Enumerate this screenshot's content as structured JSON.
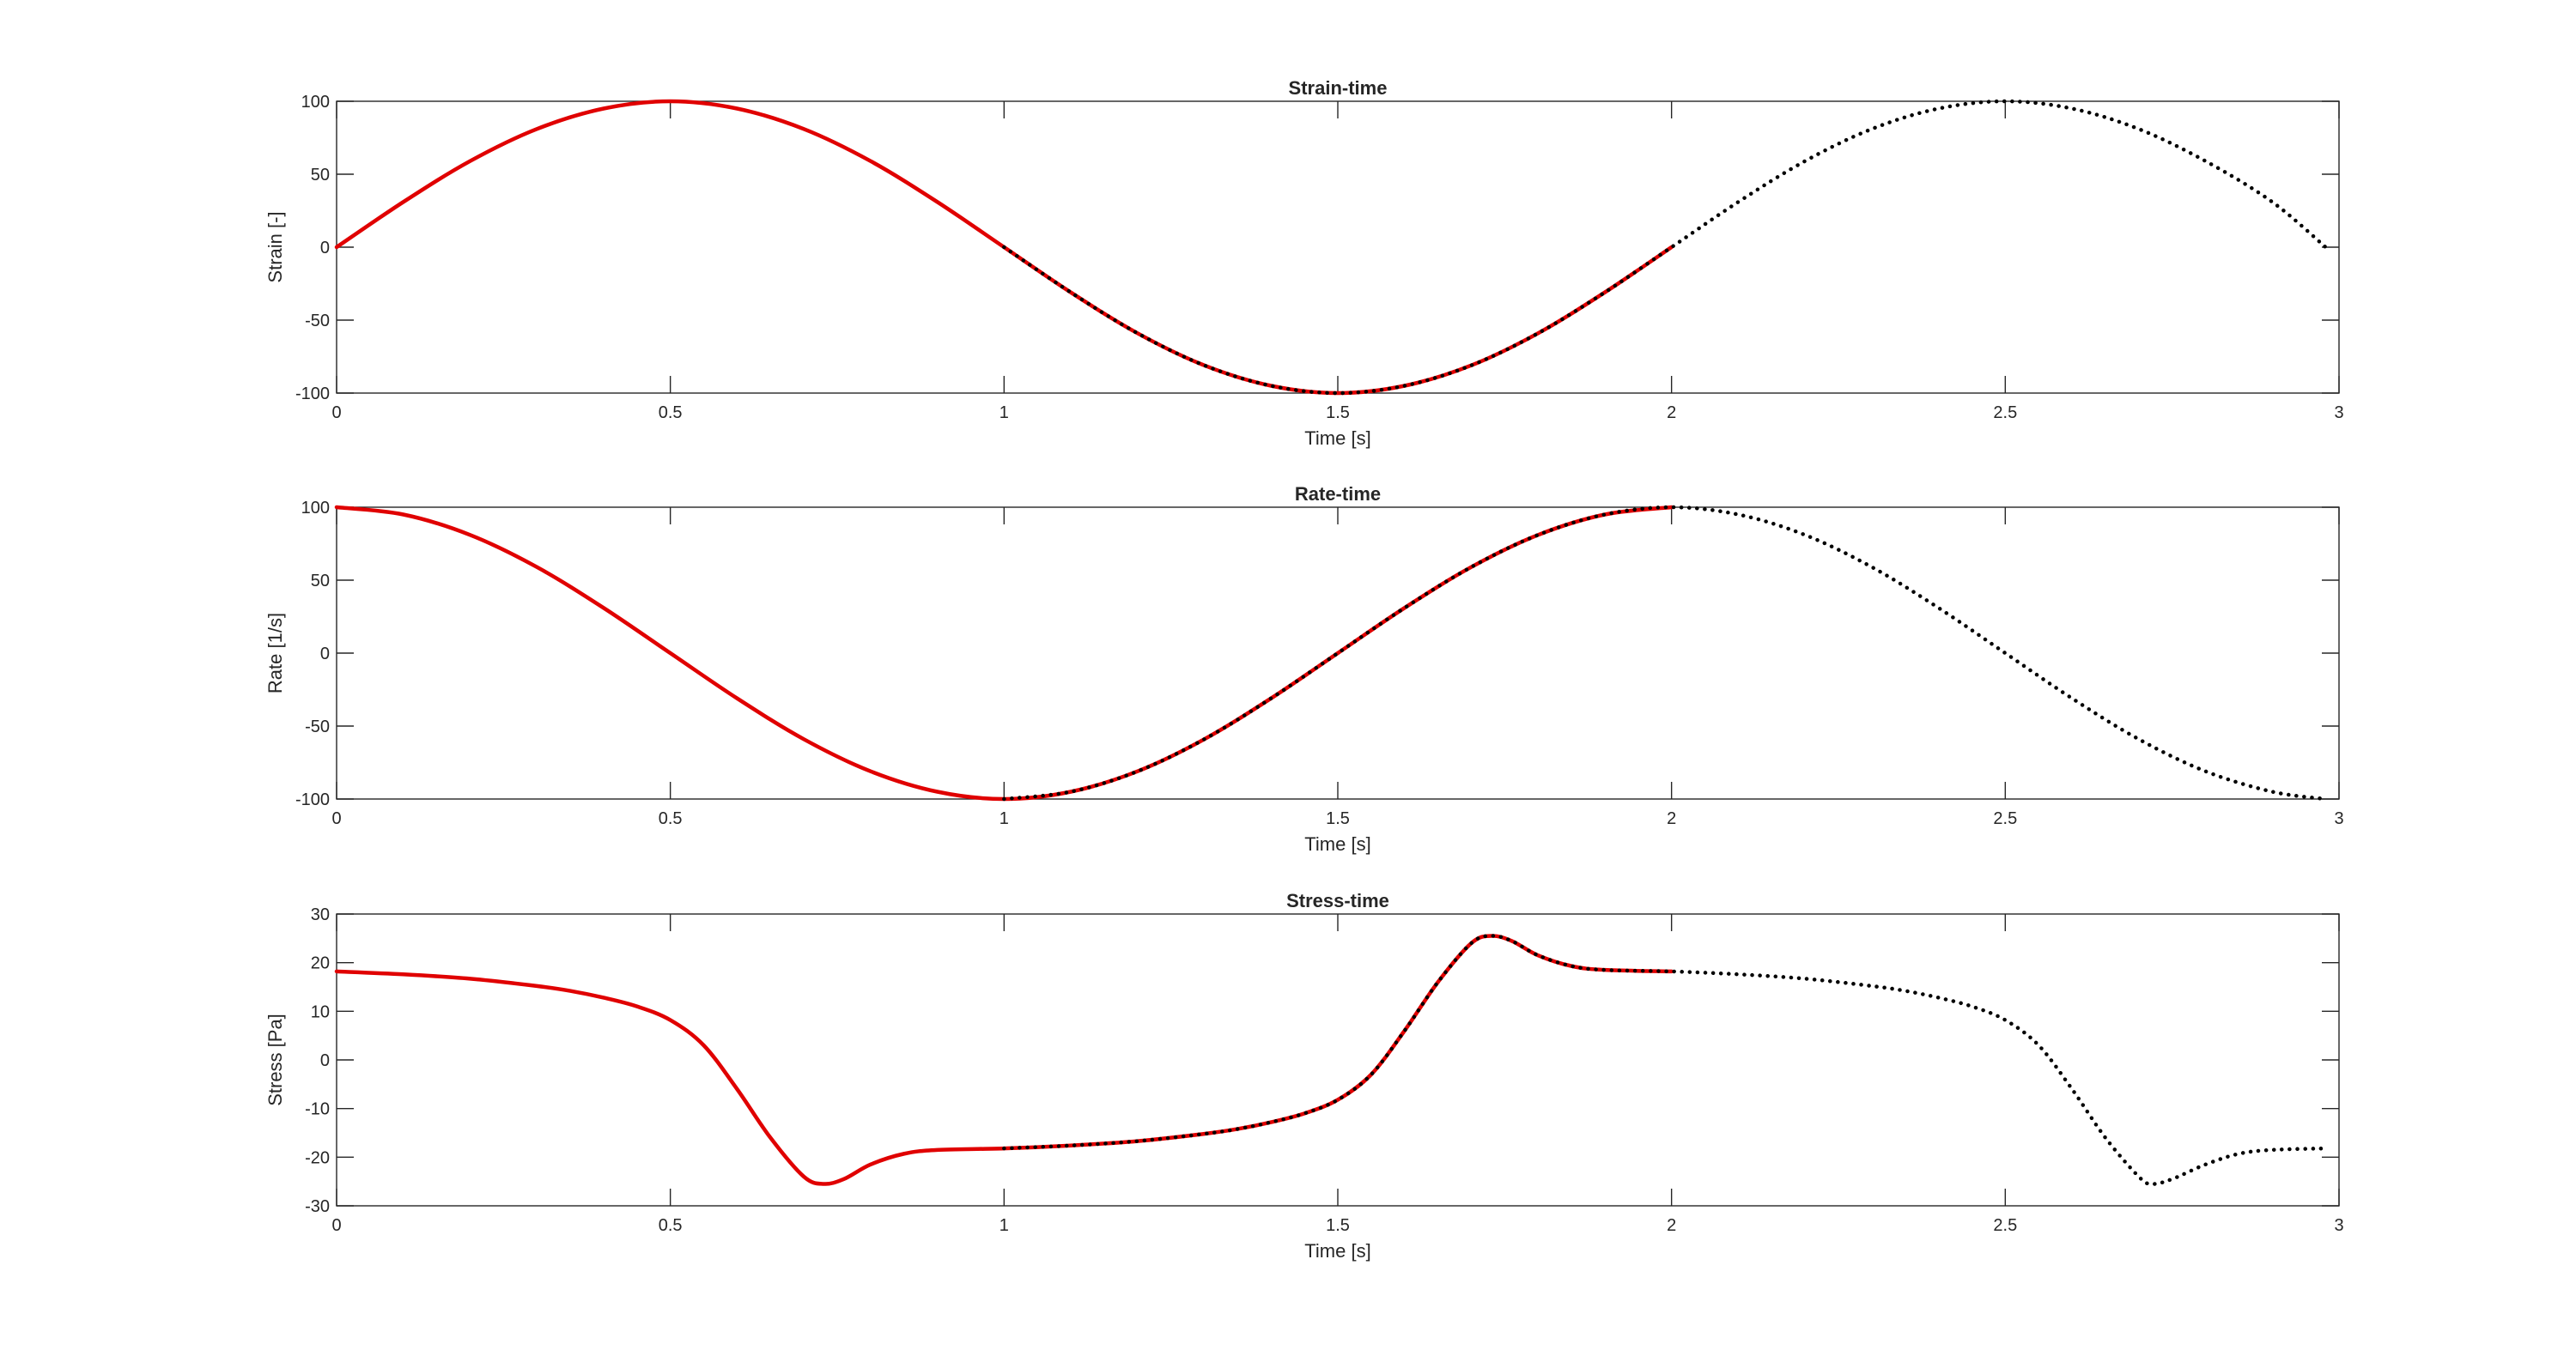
{
  "chart_data": [
    {
      "type": "line",
      "title": "Strain-time",
      "xlabel": "Time [s]",
      "ylabel": "Strain [-]",
      "xlim": [
        0,
        3
      ],
      "ylim": [
        -100,
        100
      ],
      "xticks": [
        0,
        0.5,
        1,
        1.5,
        2,
        2.5,
        3
      ],
      "xticklabels": [
        "0",
        "0.5",
        "1",
        "1.5",
        "2",
        "2.5",
        "3"
      ],
      "yticks": [
        100,
        50,
        0,
        -50,
        -100
      ],
      "yticklabels": [
        "100",
        "50",
        "0",
        "-50",
        "-100"
      ],
      "grid": false,
      "series": [
        {
          "style": "solid",
          "color": "#e00000",
          "x": [
            0,
            0.1,
            0.2,
            0.3,
            0.4,
            0.5,
            0.6,
            0.7,
            0.8,
            0.9,
            1.0,
            1.1,
            1.2,
            1.3,
            1.4,
            1.5,
            1.6,
            1.7,
            1.8,
            1.9,
            2.0
          ],
          "y": [
            0,
            31,
            59,
            81,
            95,
            100,
            95,
            81,
            59,
            31,
            0,
            -31,
            -59,
            -81,
            -95,
            -100,
            -95,
            -81,
            -59,
            -31,
            0
          ]
        },
        {
          "style": "dotted",
          "color": "#000000",
          "x": [
            1.0,
            1.1,
            1.2,
            1.3,
            1.4,
            1.5,
            1.6,
            1.7,
            1.8,
            1.9,
            2.0,
            2.1,
            2.2,
            2.3,
            2.4,
            2.5,
            2.6,
            2.7,
            2.8,
            2.9,
            2.98
          ],
          "y": [
            0,
            -31,
            -59,
            -81,
            -95,
            -100,
            -95,
            -81,
            -59,
            -31,
            0,
            31,
            59,
            81,
            95,
            100,
            95,
            81,
            59,
            31,
            0
          ]
        }
      ]
    },
    {
      "type": "line",
      "title": "Rate-time",
      "xlabel": "Time [s]",
      "ylabel": "Rate [1/s]",
      "xlim": [
        0,
        3
      ],
      "ylim": [
        -100,
        100
      ],
      "xticks": [
        0,
        0.5,
        1,
        1.5,
        2,
        2.5,
        3
      ],
      "xticklabels": [
        "0",
        "0.5",
        "1",
        "1.5",
        "2",
        "2.5",
        "3"
      ],
      "yticks": [
        100,
        50,
        0,
        -50,
        -100
      ],
      "yticklabels": [
        "100",
        "50",
        "0",
        "-50",
        "-100"
      ],
      "grid": false,
      "series": [
        {
          "style": "solid",
          "color": "#e00000",
          "x": [
            0,
            0.1,
            0.2,
            0.3,
            0.4,
            0.5,
            0.6,
            0.7,
            0.8,
            0.9,
            1.0,
            1.1,
            1.2,
            1.3,
            1.4,
            1.5,
            1.6,
            1.7,
            1.8,
            1.9,
            2.0
          ],
          "y": [
            100,
            95,
            81,
            59,
            31,
            0,
            -31,
            -59,
            -81,
            -95,
            -100,
            -95,
            -81,
            -59,
            -31,
            0,
            31,
            59,
            81,
            95,
            100
          ]
        },
        {
          "style": "dotted",
          "color": "#000000",
          "x": [
            1.0,
            1.1,
            1.2,
            1.3,
            1.4,
            1.5,
            1.6,
            1.7,
            1.8,
            1.9,
            2.0,
            2.1,
            2.2,
            2.3,
            2.4,
            2.5,
            2.6,
            2.7,
            2.8,
            2.9,
            2.98
          ],
          "y": [
            -100,
            -95,
            -81,
            -59,
            -31,
            0,
            31,
            59,
            81,
            95,
            100,
            95,
            81,
            59,
            31,
            0,
            -31,
            -59,
            -81,
            -95,
            -100
          ]
        }
      ]
    },
    {
      "type": "line",
      "title": "Stress-time",
      "xlabel": "Time [s]",
      "ylabel": "Stress [Pa]",
      "xlim": [
        0,
        3
      ],
      "ylim": [
        -30,
        30
      ],
      "xticks": [
        0,
        0.5,
        1,
        1.5,
        2,
        2.5,
        3
      ],
      "xticklabels": [
        "0",
        "0.5",
        "1",
        "1.5",
        "2",
        "2.5",
        "3"
      ],
      "yticks": [
        30,
        20,
        10,
        0,
        -10,
        -20,
        -30
      ],
      "yticklabels": [
        "30",
        "20",
        "10",
        "0",
        "-10",
        "-20",
        "-30"
      ],
      "grid": false,
      "series": [
        {
          "style": "solid",
          "color": "#e00000",
          "x": [
            0,
            0.1,
            0.2,
            0.3,
            0.35,
            0.4,
            0.45,
            0.5,
            0.55,
            0.6,
            0.65,
            0.7,
            0.73,
            0.76,
            0.8,
            0.85,
            0.9,
            1.0,
            1.1,
            1.2,
            1.3,
            1.35,
            1.4,
            1.45,
            1.5,
            1.55,
            1.6,
            1.65,
            1.7,
            1.73,
            1.76,
            1.8,
            1.85,
            1.9,
            2.0
          ],
          "y": [
            18.2,
            17.6,
            16.7,
            15.2,
            14.2,
            12.8,
            11.0,
            8.2,
            3.0,
            -6.0,
            -16.0,
            -24.0,
            -25.5,
            -24.5,
            -21.5,
            -19.3,
            -18.5,
            -18.2,
            -17.6,
            -16.7,
            -15.2,
            -14.2,
            -12.8,
            -11.0,
            -8.2,
            -3.0,
            6.0,
            16.0,
            24.0,
            25.5,
            24.5,
            21.5,
            19.3,
            18.5,
            18.2
          ]
        },
        {
          "style": "dotted",
          "color": "#000000",
          "x": [
            1.0,
            1.1,
            1.2,
            1.3,
            1.35,
            1.4,
            1.45,
            1.5,
            1.55,
            1.6,
            1.65,
            1.7,
            1.73,
            1.76,
            1.8,
            1.85,
            1.9,
            2.0,
            2.1,
            2.2,
            2.3,
            2.35,
            2.4,
            2.45,
            2.5,
            2.55,
            2.6,
            2.65,
            2.7,
            2.72,
            2.75,
            2.8,
            2.85,
            2.9,
            2.98
          ],
          "y": [
            -18.2,
            -17.6,
            -16.7,
            -15.2,
            -14.2,
            -12.8,
            -11.0,
            -8.2,
            -3.0,
            6.0,
            16.0,
            24.0,
            25.5,
            24.5,
            21.5,
            19.3,
            18.5,
            18.2,
            17.6,
            16.7,
            15.2,
            14.2,
            12.8,
            11.0,
            8.2,
            3.0,
            -6.0,
            -16.0,
            -24.0,
            -25.5,
            -24.5,
            -21.5,
            -19.3,
            -18.5,
            -18.2
          ]
        }
      ]
    }
  ]
}
